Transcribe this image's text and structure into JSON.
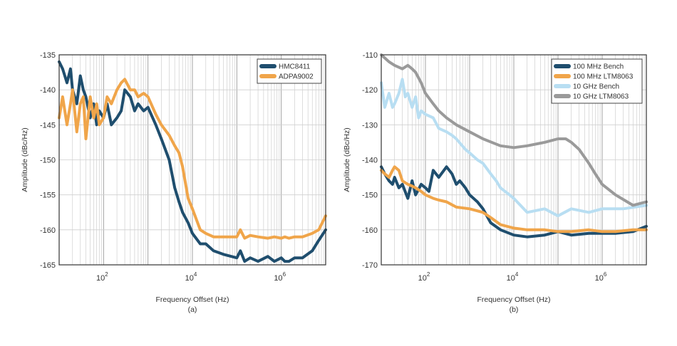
{
  "chart_data": [
    {
      "type": "line",
      "caption": "(a)",
      "xlabel": "Frequency Offset (Hz)",
      "ylabel": "Amplitude (dBc/Hz)",
      "x_scale": "log",
      "xlim": [
        10,
        10000000
      ],
      "ylim": [
        -165,
        -135
      ],
      "yticks": [
        -135,
        -140,
        -145,
        -150,
        -155,
        -160,
        -165
      ],
      "xticks": [
        {
          "base": "10",
          "exp": "2"
        },
        {
          "base": "10",
          "exp": "4"
        },
        {
          "base": "10",
          "exp": "6"
        }
      ],
      "grid": true,
      "legend_position": "top-right",
      "series": [
        {
          "name": "HMC8411",
          "color": "#1f4e6e",
          "x": [
            10,
            12,
            15,
            18,
            20,
            25,
            30,
            35,
            40,
            50,
            60,
            70,
            80,
            100,
            120,
            150,
            200,
            250,
            300,
            400,
            500,
            600,
            800,
            1000,
            1500,
            2000,
            3000,
            4000,
            5000,
            6000,
            8000,
            10000,
            15000,
            20000,
            30000,
            50000,
            100000,
            120000,
            150000,
            200000,
            300000,
            500000,
            700000,
            1000000,
            1200000,
            1500000,
            2000000,
            3000000,
            5000000,
            7000000,
            10000000
          ],
          "y": [
            -136,
            -137,
            -139,
            -137,
            -140,
            -142,
            -138,
            -140,
            -141,
            -144,
            -142,
            -145,
            -143,
            -144,
            -142,
            -145,
            -144,
            -143,
            -140,
            -141,
            -143,
            -142,
            -143,
            -142.5,
            -145,
            -147,
            -150,
            -154,
            -156,
            -157.5,
            -159,
            -160.5,
            -162,
            -162,
            -163,
            -163.5,
            -164,
            -163,
            -164.5,
            -164,
            -164.5,
            -163.8,
            -164.5,
            -164,
            -164.5,
            -164.5,
            -164,
            -164,
            -163,
            -161.5,
            -160
          ]
        },
        {
          "name": "ADPA9002",
          "color": "#f0a54a",
          "x": [
            10,
            12,
            15,
            18,
            20,
            25,
            30,
            35,
            40,
            50,
            60,
            70,
            80,
            100,
            120,
            150,
            200,
            250,
            300,
            400,
            500,
            600,
            800,
            1000,
            1500,
            2000,
            3000,
            4000,
            5000,
            6000,
            8000,
            10000,
            15000,
            20000,
            30000,
            50000,
            100000,
            120000,
            150000,
            200000,
            300000,
            500000,
            700000,
            1000000,
            1200000,
            1500000,
            2000000,
            3000000,
            5000000,
            7000000,
            10000000
          ],
          "y": [
            -144,
            -141,
            -145,
            -142,
            -140,
            -146,
            -142,
            -141,
            -147,
            -141,
            -144,
            -142,
            -145,
            -144,
            -141,
            -142,
            -140,
            -139,
            -138.5,
            -140,
            -140,
            -141,
            -140.5,
            -141,
            -143.5,
            -145,
            -146.5,
            -148,
            -149,
            -151,
            -155.5,
            -157,
            -160,
            -160.5,
            -161,
            -161,
            -161,
            -160,
            -161.2,
            -160.8,
            -161,
            -161.2,
            -161,
            -161.2,
            -161,
            -161.2,
            -161,
            -161,
            -160.5,
            -160,
            -158
          ]
        }
      ]
    },
    {
      "type": "line",
      "caption": "(b)",
      "xlabel": "Frequency Offset (Hz)",
      "ylabel": "Amplitude (dBc/Hz)",
      "x_scale": "log",
      "xlim": [
        10,
        10000000
      ],
      "ylim": [
        -170,
        -110
      ],
      "yticks": [
        -110,
        -120,
        -130,
        -140,
        -150,
        -160,
        -170
      ],
      "xticks": [
        {
          "base": "10",
          "exp": "2"
        },
        {
          "base": "10",
          "exp": "4"
        },
        {
          "base": "10",
          "exp": "6"
        }
      ],
      "grid": true,
      "legend_position": "top-right",
      "series": [
        {
          "name": "100 MHz Bench",
          "color": "#1f4e6e",
          "x": [
            10,
            12,
            15,
            18,
            20,
            25,
            30,
            40,
            50,
            60,
            80,
            100,
            120,
            150,
            200,
            300,
            400,
            500,
            600,
            800,
            1000,
            1500,
            2000,
            3000,
            5000,
            10000,
            20000,
            50000,
            100000,
            200000,
            500000,
            1000000,
            2000000,
            5000000,
            10000000
          ],
          "y": [
            -142,
            -144,
            -146,
            -147,
            -145,
            -148,
            -147,
            -151,
            -146,
            -150,
            -147,
            -148,
            -149,
            -143,
            -145,
            -142,
            -144,
            -147,
            -146,
            -148,
            -150,
            -152,
            -154,
            -158,
            -160,
            -161.5,
            -162,
            -161.5,
            -160.5,
            -161.5,
            -161,
            -161,
            -161,
            -160.5,
            -159
          ]
        },
        {
          "name": "100 MHz LTM8063",
          "color": "#f0a54a",
          "x": [
            10,
            12,
            15,
            18,
            20,
            25,
            30,
            40,
            50,
            60,
            80,
            100,
            150,
            200,
            300,
            500,
            1000,
            2000,
            3000,
            5000,
            10000,
            20000,
            50000,
            100000,
            200000,
            500000,
            1000000,
            2000000,
            5000000,
            10000000
          ],
          "y": [
            -143,
            -144,
            -145,
            -143,
            -142,
            -143,
            -146,
            -147,
            -147.5,
            -148,
            -149,
            -150,
            -151,
            -151.5,
            -152,
            -153.5,
            -154,
            -155,
            -156.5,
            -158.5,
            -159.5,
            -160,
            -160,
            -160.5,
            -160.5,
            -160,
            -160.5,
            -160.5,
            -160,
            -160
          ]
        },
        {
          "name": "10 GHz Bench",
          "color": "#b8def2",
          "x": [
            10,
            12,
            15,
            18,
            20,
            25,
            30,
            35,
            40,
            50,
            60,
            70,
            80,
            100,
            150,
            200,
            300,
            400,
            500,
            800,
            1000,
            1500,
            2000,
            3000,
            4000,
            5000,
            8000,
            10000,
            20000,
            50000,
            100000,
            200000,
            500000,
            1000000,
            3000000,
            10000000
          ],
          "y": [
            -118,
            -125,
            -121,
            -125,
            -124,
            -121,
            -117,
            -122,
            -121,
            -125,
            -122,
            -128,
            -126,
            -127,
            -128,
            -131,
            -132,
            -133,
            -134,
            -137,
            -138,
            -140,
            -141,
            -144,
            -146,
            -148,
            -150,
            -151,
            -155,
            -154,
            -156,
            -154,
            -155,
            -154,
            -154,
            -153
          ]
        },
        {
          "name": "10 GHz LTM8063",
          "color": "#9a9a9a",
          "x": [
            10,
            15,
            20,
            30,
            40,
            50,
            60,
            80,
            100,
            150,
            200,
            300,
            500,
            1000,
            2000,
            5000,
            10000,
            20000,
            50000,
            100000,
            150000,
            200000,
            300000,
            500000,
            700000,
            1000000,
            2000000,
            5000000,
            10000000
          ],
          "y": [
            -110,
            -112,
            -113,
            -114,
            -113,
            -114,
            -115,
            -118,
            -121,
            -124,
            -126,
            -128,
            -130,
            -132,
            -134,
            -136,
            -136.5,
            -136,
            -135,
            -134,
            -134,
            -135,
            -137,
            -141,
            -144,
            -147,
            -150,
            -153,
            -152
          ]
        }
      ]
    }
  ]
}
